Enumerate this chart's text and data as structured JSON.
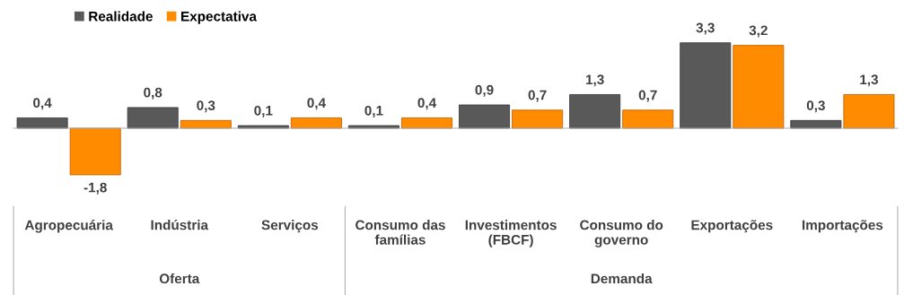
{
  "chart_data": {
    "type": "bar",
    "categories": [
      "Agropecuária",
      "Indústria",
      "Serviços",
      "Consumo das\nfamílias",
      "Investimentos\n(FBCF)",
      "Consumo do\ngoverno",
      "Exportações",
      "Importações"
    ],
    "series": [
      {
        "name": "Realidade",
        "color": "#595959",
        "values": [
          0.4,
          0.8,
          0.1,
          0.1,
          0.9,
          1.3,
          3.3,
          0.3
        ],
        "value_labels": [
          "0,4",
          "0,8",
          "0,1",
          "0,1",
          "0,9",
          "1,3",
          "3,3",
          "0,3"
        ]
      },
      {
        "name": "Expectativa",
        "color": "#ff8c00",
        "values": [
          -1.8,
          0.3,
          0.4,
          0.4,
          0.7,
          0.7,
          3.2,
          1.3
        ],
        "value_labels": [
          "-1,8",
          "0,3",
          "0,4",
          "0,4",
          "0,7",
          "0,7",
          "3,2",
          "1,3"
        ]
      }
    ],
    "annotations": [
      "Oferta",
      "Demanda"
    ],
    "legend": "top left"
  }
}
